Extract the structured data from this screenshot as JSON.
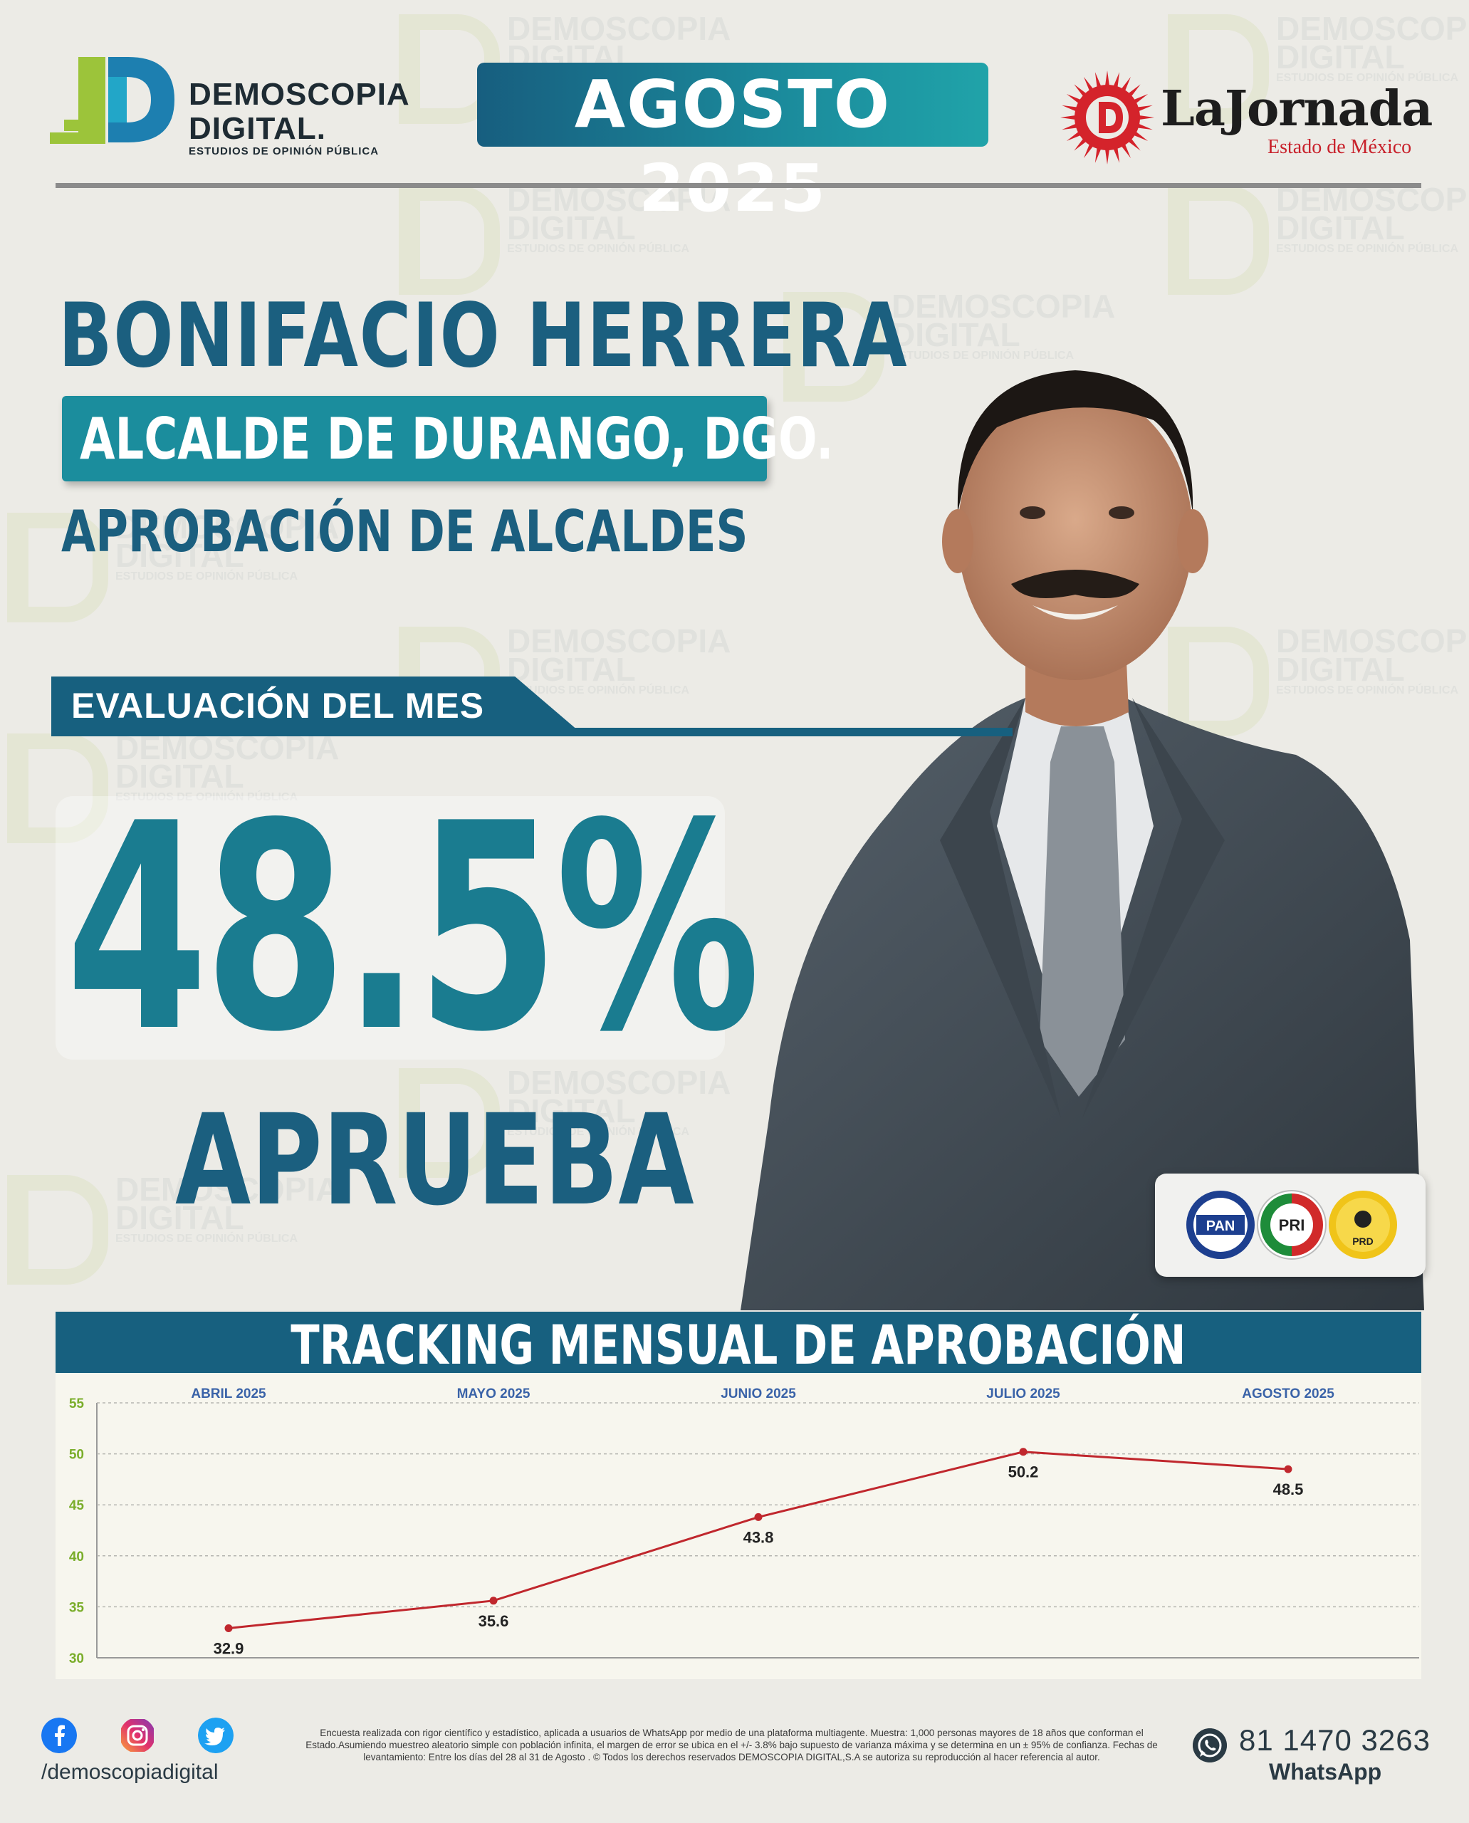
{
  "header": {
    "logo_left": {
      "line1": "DEMOSCOPIA",
      "line2": "DIGITAL.",
      "tagline": "ESTUDIOS DE OPINIÓN PÚBLICA"
    },
    "period": "AGOSTO 2025",
    "logo_right": {
      "name": "LaJornada",
      "subtitle": "Estado de México"
    }
  },
  "subject": {
    "name": "BONIFACIO HERRERA",
    "role": "ALCALDE DE DURANGO, DGO.",
    "survey": "APROBACIÓN DE ALCALDES"
  },
  "evaluation": {
    "label": "EVALUACIÓN DEL MES",
    "value": "48.5%",
    "caption": "APRUEBA"
  },
  "parties": [
    "PAN",
    "PRI",
    "PRD"
  ],
  "chart_data": {
    "type": "line",
    "title": "TRACKING MENSUAL DE APROBACIÓN",
    "categories": [
      "ABRIL 2025",
      "MAYO 2025",
      "JUNIO 2025",
      "JULIO 2025",
      "AGOSTO 2025"
    ],
    "series": [
      {
        "values": [
          32.9,
          35.6,
          43.8,
          50.2,
          48.5
        ]
      }
    ],
    "data_labels": [
      "32.9",
      "35.6",
      "43.8",
      "50.2",
      "48.5"
    ],
    "yticks": [
      "55",
      "50",
      "45",
      "40",
      "35",
      "30"
    ],
    "ylim": [
      30,
      55
    ],
    "grid": true,
    "colors": {
      "line": "#c0272d",
      "category_label": "#3a63a8",
      "ytick": "#7aad2a"
    }
  },
  "footer": {
    "social": [
      "facebook-icon",
      "instagram-icon",
      "twitter-icon"
    ],
    "handle": "/demoscopiadigital",
    "disclaimer": "Encuesta realizada con rigor científico y estadístico, aplicada a usuarios de WhatsApp por medio de una plataforma multiagente. Muestra: 1,000 personas mayores de 18 años que conforman el Estado.Asumiendo muestreo aleatorio simple con población infinita, el margen de error se ubica en el +/- 3.8% bajo supuesto de varianza máxima y se determina en un ± 95% de confianza. Fechas de levantamiento: Entre los días del 28 al 31 de Agosto . © Todos los derechos reservados DEMOSCOPIA DIGITAL,S.A se autoriza su reproducción al hacer referencia al autor.",
    "phone": "81 1470 3263",
    "phone_label": "WhatsApp"
  }
}
